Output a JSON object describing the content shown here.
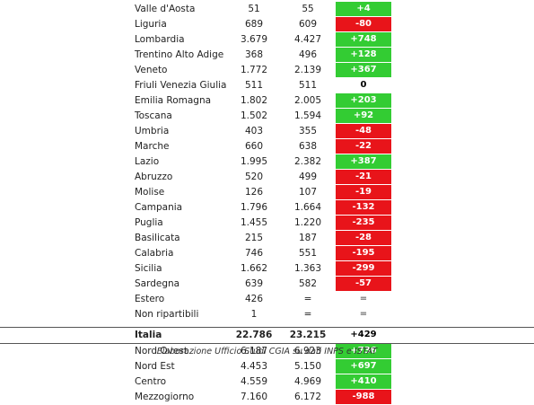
{
  "regions": [
    {
      "name": "Valle d'Aosta",
      "v1": "51",
      "v2": "55",
      "delta": "+4",
      "sign": "pos"
    },
    {
      "name": "Liguria",
      "v1": "689",
      "v2": "609",
      "delta": "-80",
      "sign": "neg"
    },
    {
      "name": "Lombardia",
      "v1": "3.679",
      "v2": "4.427",
      "delta": "+748",
      "sign": "pos"
    },
    {
      "name": "Trentino Alto Adige",
      "v1": "368",
      "v2": "496",
      "delta": "+128",
      "sign": "pos"
    },
    {
      "name": "Veneto",
      "v1": "1.772",
      "v2": "2.139",
      "delta": "+367",
      "sign": "pos"
    },
    {
      "name": "Friuli Venezia Giulia",
      "v1": "511",
      "v2": "511",
      "delta": "0",
      "sign": "zero"
    },
    {
      "name": "Emilia Romagna",
      "v1": "1.802",
      "v2": "2.005",
      "delta": "+203",
      "sign": "pos"
    },
    {
      "name": "Toscana",
      "v1": "1.502",
      "v2": "1.594",
      "delta": "+92",
      "sign": "pos"
    },
    {
      "name": "Umbria",
      "v1": "403",
      "v2": "355",
      "delta": "-48",
      "sign": "neg"
    },
    {
      "name": "Marche",
      "v1": "660",
      "v2": "638",
      "delta": "-22",
      "sign": "neg"
    },
    {
      "name": "Lazio",
      "v1": "1.995",
      "v2": "2.382",
      "delta": "+387",
      "sign": "pos"
    },
    {
      "name": "Abruzzo",
      "v1": "520",
      "v2": "499",
      "delta": "-21",
      "sign": "neg"
    },
    {
      "name": "Molise",
      "v1": "126",
      "v2": "107",
      "delta": "-19",
      "sign": "neg"
    },
    {
      "name": "Campania",
      "v1": "1.796",
      "v2": "1.664",
      "delta": "-132",
      "sign": "neg"
    },
    {
      "name": "Puglia",
      "v1": "1.455",
      "v2": "1.220",
      "delta": "-235",
      "sign": "neg"
    },
    {
      "name": "Basilicata",
      "v1": "215",
      "v2": "187",
      "delta": "-28",
      "sign": "neg"
    },
    {
      "name": "Calabria",
      "v1": "746",
      "v2": "551",
      "delta": "-195",
      "sign": "neg"
    },
    {
      "name": "Sicilia",
      "v1": "1.662",
      "v2": "1.363",
      "delta": "-299",
      "sign": "neg"
    },
    {
      "name": "Sardegna",
      "v1": "639",
      "v2": "582",
      "delta": "-57",
      "sign": "neg"
    },
    {
      "name": "Estero",
      "v1": "426",
      "v2": "=",
      "delta": "=",
      "sign": "none"
    },
    {
      "name": "Non ripartibili",
      "v1": "1",
      "v2": "=",
      "delta": "=",
      "sign": "none"
    }
  ],
  "total": {
    "name": "Italia",
    "v1": "22.786",
    "v2": "23.215",
    "delta": "+429"
  },
  "macro": [
    {
      "name": "Nord Ovest",
      "v1": "6.187",
      "v2": "6.923",
      "delta": "+736",
      "sign": "pos"
    },
    {
      "name": "Nord Est",
      "v1": "4.453",
      "v2": "5.150",
      "delta": "+697",
      "sign": "pos"
    },
    {
      "name": "Centro",
      "v1": "4.559",
      "v2": "4.969",
      "delta": "+410",
      "sign": "pos"
    },
    {
      "name": "Mezzogiorno",
      "v1": "7.160",
      "v2": "6.172",
      "delta": "-988",
      "sign": "neg"
    }
  ],
  "source": "Elaborazione Ufficio Studi CGIA su dati INPS  e ISTAT",
  "colors": {
    "positive": "#33cc33",
    "negative": "#e8141a"
  }
}
